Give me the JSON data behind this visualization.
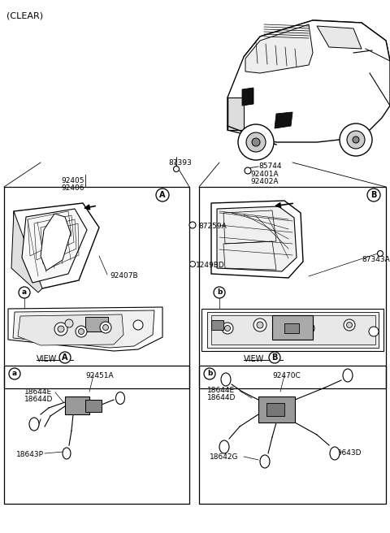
{
  "bg": "#ffffff",
  "lc": "#000000",
  "title": "(CLEAR)",
  "parts": {
    "87393": "87393",
    "92405": "92405",
    "92406": "92406",
    "85744": "85744",
    "92401A": "92401A",
    "92402A": "92402A",
    "87259A": "87259A",
    "92407B": "92407B",
    "1249BD": "1249BD",
    "87343A": "87343A",
    "92451A": "92451A",
    "18644E": "18644E",
    "18644D": "18644D",
    "18643P": "18643P",
    "92470C": "92470C",
    "18643D": "18643D",
    "18642G": "18642G"
  }
}
